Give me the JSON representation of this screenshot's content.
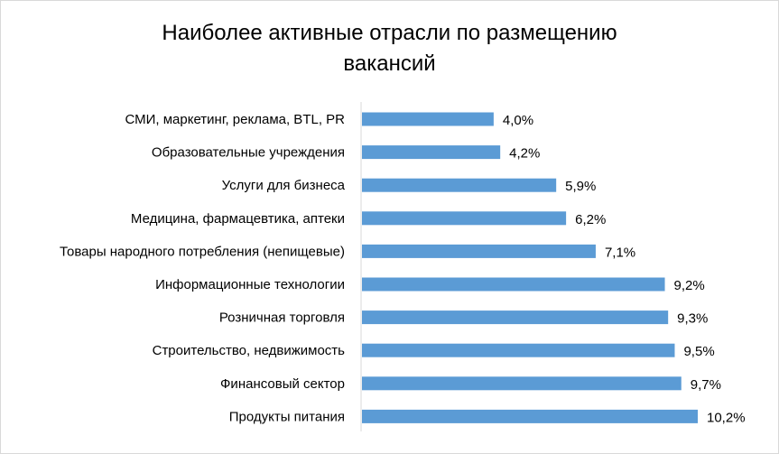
{
  "chart_data": {
    "type": "bar",
    "orientation": "horizontal",
    "title_line1": "Наиболее активные отрасли по размещению",
    "title_line2": "вакансий",
    "categories": [
      "СМИ, маркетинг, реклама, BTL, PR",
      "Образовательные учреждения",
      "Услуги для бизнеса",
      "Медицина, фармацевтика, аптеки",
      "Товары народного потребления (непищевые)",
      "Информационные технологии",
      "Розничная торговля",
      "Строительство, недвижимость",
      "Финансовый сектор",
      "Продукты питания"
    ],
    "values": [
      4.0,
      4.2,
      5.9,
      6.2,
      7.1,
      9.2,
      9.3,
      9.5,
      9.7,
      10.2
    ],
    "value_labels": [
      "4,0%",
      "4,2%",
      "5,9%",
      "6,2%",
      "7,1%",
      "9,2%",
      "9,3%",
      "9,5%",
      "9,7%",
      "10,2%"
    ],
    "unit": "%",
    "xlim": [
      0,
      10.2
    ],
    "grid": false,
    "legend": "none",
    "bar_color": "#5b9bd5",
    "axis_color": "#d9d9d9"
  }
}
